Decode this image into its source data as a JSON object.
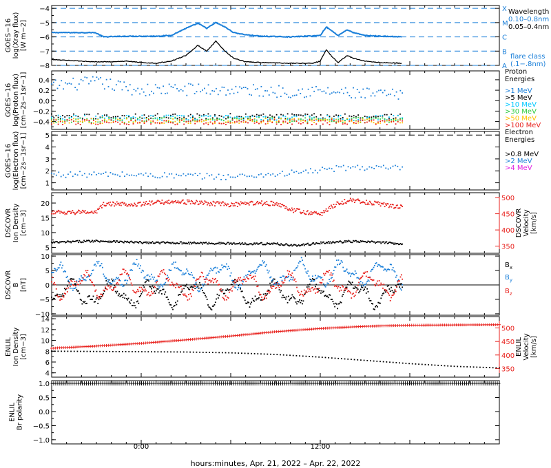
{
  "xlabel": "hours:minutes, Apr. 21, 2022 – Apr. 22, 2022",
  "x_range_hours": [
    -6,
    24
  ],
  "x_ticks": [
    {
      "h": 0,
      "label": "0:00"
    },
    {
      "h": 12,
      "label": "12:00"
    }
  ],
  "chart_data": [
    {
      "type": "line",
      "id": "xray",
      "ylabel_lines": [
        "GOES−16",
        "log(Xray flux)",
        "[W m−2]"
      ],
      "ylim": [
        -8,
        -3.8
      ],
      "yticks": [
        -8,
        -7,
        -6,
        -5,
        -4
      ],
      "ytick_labels": [
        "−8",
        "−7",
        "−6",
        "−5",
        "−4"
      ],
      "flare_levels": [
        -8,
        -7,
        -6,
        -5,
        -4
      ],
      "flare_labels": [
        "A",
        "B",
        "C",
        "M",
        "X"
      ],
      "legend_title": "Wavelength",
      "legend_note": [
        "flare class",
        "(.1−.8nm)"
      ],
      "series": [
        {
          "name": "0.10–0.8nm",
          "color": "#1a7fd9",
          "x": [
            -6,
            -4,
            -3.1,
            -2.5,
            -1,
            1,
            2,
            3,
            3.8,
            4.4,
            5,
            5.6,
            6.2,
            7,
            8,
            10,
            12,
            12.4,
            13.2,
            13.8,
            14.2,
            15,
            16,
            17.5
          ],
          "y": [
            -5.7,
            -5.7,
            -5.7,
            -6.0,
            -5.95,
            -5.95,
            -5.9,
            -5.4,
            -5.05,
            -5.4,
            -5.0,
            -5.3,
            -5.7,
            -5.85,
            -5.95,
            -6.0,
            -5.9,
            -5.3,
            -5.9,
            -5.5,
            -5.7,
            -5.9,
            -5.95,
            -6.0
          ]
        },
        {
          "name": "0.05–0.4nm",
          "color": "#000000",
          "x": [
            -6,
            -4,
            -3,
            -2,
            -1,
            0,
            1,
            2,
            3,
            3.8,
            4.4,
            5,
            5.6,
            6.2,
            7,
            8,
            10,
            11.5,
            12,
            12.4,
            12.8,
            13.2,
            13.8,
            14.2,
            15,
            16,
            17.5
          ],
          "y": [
            -7.6,
            -7.7,
            -7.75,
            -7.75,
            -7.7,
            -7.8,
            -7.85,
            -7.7,
            -7.3,
            -6.6,
            -7.0,
            -6.3,
            -7.0,
            -7.5,
            -7.75,
            -7.8,
            -7.85,
            -7.85,
            -7.7,
            -6.9,
            -7.4,
            -7.8,
            -7.3,
            -7.5,
            -7.7,
            -7.8,
            -7.85
          ]
        }
      ]
    },
    {
      "type": "scatter",
      "id": "proton",
      "ylabel_lines": [
        "GOES−16",
        "log(Proton flux)",
        "[cm−2s−1sr−1]"
      ],
      "ylim": [
        -0.55,
        0.57
      ],
      "yticks": [
        -0.4,
        -0.2,
        0.0,
        0.2,
        0.4
      ],
      "ytick_labels": [
        "−0.4",
        "−0.2",
        "0.0",
        "0.2",
        "0.4"
      ],
      "legend_title": [
        "Proton",
        "Energies"
      ],
      "series": [
        {
          "name": ">1 MeV",
          "color": "#1a7fd9",
          "x": [
            -6,
            -3,
            0,
            3,
            6,
            9,
            12,
            15,
            17.5
          ],
          "y": [
            0.28,
            0.35,
            0.2,
            0.22,
            0.2,
            0.18,
            0.18,
            0.12,
            0.1
          ]
        },
        {
          "name": ">5 MeV",
          "color": "#000000",
          "x": [
            -6,
            17.5
          ],
          "y": [
            -0.3,
            -0.3
          ]
        },
        {
          "name": ">10 MeV",
          "color": "#00c8ff",
          "x": [
            -6,
            17.5
          ],
          "y": [
            -0.33,
            -0.33
          ]
        },
        {
          "name": ">30 MeV",
          "color": "#2ecc40",
          "x": [
            -6,
            17.5
          ],
          "y": [
            -0.37,
            -0.37
          ]
        },
        {
          "name": ">50 MeV",
          "color": "#ffc000",
          "x": [
            -6,
            17.5
          ],
          "y": [
            -0.39,
            -0.39
          ]
        },
        {
          "name": ">100 MeV",
          "color": "#e8201c",
          "x": [
            -6,
            17.5
          ],
          "y": [
            -0.41,
            -0.41
          ]
        }
      ]
    },
    {
      "type": "scatter",
      "id": "electron",
      "ylabel_lines": [
        "GOES−16",
        "log(Electron flux)",
        "[cm−2s−1sr−1]"
      ],
      "ylim": [
        0.4,
        5.3
      ],
      "yticks": [
        1,
        2,
        3,
        4,
        5
      ],
      "ytick_labels": [
        "1",
        "2",
        "3",
        "4",
        "5"
      ],
      "threshold": 5.0,
      "legend_title": [
        "Electron",
        "Energies"
      ],
      "series": [
        {
          "name": ">0.8 MeV",
          "color": "#000000",
          "x": [],
          "y": []
        },
        {
          "name": ">2 MeV",
          "color": "#1a7fd9",
          "x": [
            -6,
            -2,
            2,
            6,
            10,
            14,
            17.5
          ],
          "y": [
            1.7,
            1.7,
            1.6,
            1.5,
            1.8,
            2.3,
            2.2
          ]
        },
        {
          "name": ">4 MeV",
          "color": "#e020e0",
          "x": [],
          "y": []
        }
      ]
    },
    {
      "type": "scatter",
      "id": "dscovr_plasma",
      "ylabel_lines": [
        "DSCOVR",
        "Ion Density",
        "[cm−3]"
      ],
      "ylim": [
        3,
        23.5
      ],
      "yticks": [
        5,
        10,
        15,
        20
      ],
      "ytick_labels": [
        "5",
        "10",
        "15",
        "20"
      ],
      "y2label_lines": [
        "DSCOVR",
        "Velocity",
        "[km/s]"
      ],
      "y2lim": [
        328,
        515
      ],
      "y2ticks": [
        350,
        400,
        450,
        500
      ],
      "y2tick_labels": [
        "350",
        "400",
        "450",
        "500"
      ],
      "series": [
        {
          "name": "Density",
          "color": "#000000",
          "axis": "left",
          "x": [
            -6,
            -3,
            0,
            3,
            6,
            9,
            10.5,
            12,
            14,
            15.5,
            17.5
          ],
          "y": [
            6.6,
            7.2,
            6.6,
            6.5,
            6.3,
            6.2,
            5.6,
            6.5,
            7.0,
            6.8,
            6.2
          ]
        },
        {
          "name": "Velocity",
          "color": "#e8201c",
          "axis": "right",
          "x": [
            -6,
            -3,
            -2.5,
            0,
            2,
            4,
            6,
            8,
            9,
            10,
            11,
            12,
            13,
            14,
            15,
            16,
            17.5
          ],
          "y": [
            455,
            455,
            480,
            480,
            488,
            484,
            478,
            483,
            482,
            462,
            455,
            448,
            478,
            492,
            486,
            480,
            470
          ]
        }
      ]
    },
    {
      "type": "scatter",
      "id": "dscovr_mag",
      "ylabel_lines": [
        "DSCOVR",
        "B",
        "[nT]"
      ],
      "ylim": [
        -10.5,
        10.5
      ],
      "yticks": [
        -10,
        -5,
        0,
        5,
        10
      ],
      "ytick_labels": [
        "−10",
        "−5",
        "0",
        "5",
        "10"
      ],
      "series": [
        {
          "name": "Bx",
          "color": "#000000",
          "x": [
            -6,
            17.5
          ],
          "y": [
            -3,
            -3
          ]
        },
        {
          "name": "By",
          "color": "#1a7fd9",
          "x": [
            -6,
            17.5
          ],
          "y": [
            3,
            4
          ]
        },
        {
          "name": "Bz",
          "color": "#e8201c",
          "x": [
            -6,
            17.5
          ],
          "y": [
            0,
            0
          ]
        }
      ]
    },
    {
      "type": "scatter",
      "id": "enlil_plasma",
      "ylabel_lines": [
        "ENLIL",
        "Ion Density",
        "[cm−3]"
      ],
      "ylim": [
        3.2,
        14.4
      ],
      "yticks": [
        4,
        6,
        8,
        10,
        12,
        14
      ],
      "ytick_labels": [
        "4",
        "6",
        "8",
        "10",
        "12",
        "14"
      ],
      "y2label_lines": [
        "ENLIL",
        "Velocity",
        "[km/s]"
      ],
      "y2lim": [
        318,
        542
      ],
      "y2ticks": [
        350,
        400,
        450,
        500
      ],
      "y2tick_labels": [
        "350",
        "400",
        "450",
        "500"
      ],
      "series": [
        {
          "name": "Density",
          "color": "#000000",
          "axis": "left",
          "x": [
            -6,
            -3,
            0,
            3,
            6,
            9,
            12,
            15,
            18,
            21,
            24
          ],
          "y": [
            8.0,
            7.95,
            7.9,
            7.85,
            7.7,
            7.4,
            6.9,
            6.3,
            5.7,
            5.2,
            4.9
          ]
        },
        {
          "name": "Velocity",
          "color": "#e8201c",
          "axis": "right",
          "x": [
            -6,
            -3,
            0,
            3,
            6,
            9,
            12,
            15,
            18,
            21,
            24
          ],
          "y": [
            425,
            433,
            443,
            456,
            470,
            486,
            498,
            506,
            510,
            511,
            512
          ]
        }
      ]
    },
    {
      "type": "scatter",
      "id": "enlil_polarity",
      "ylabel_lines": [
        "ENLIL",
        "Br polarity"
      ],
      "ylim": [
        -1.15,
        1.1
      ],
      "yticks": [
        -1.0,
        -0.5,
        0.0,
        0.5,
        1.0
      ],
      "ytick_labels": [
        "−1.0",
        "−0.5",
        "0.0",
        "0.5",
        "1.0"
      ],
      "series": [
        {
          "name": "Polarity",
          "color": "#000000",
          "x": [
            -6,
            24
          ],
          "y": [
            1.0,
            1.0
          ]
        }
      ]
    }
  ]
}
